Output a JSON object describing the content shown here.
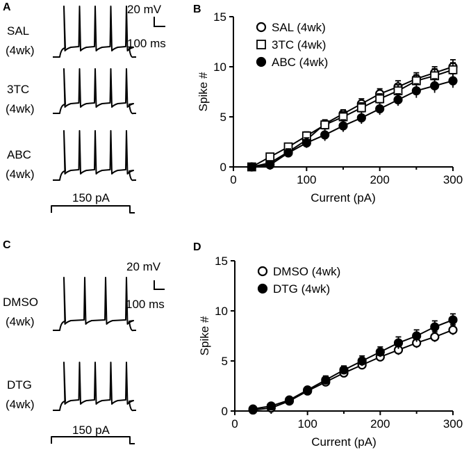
{
  "panels": [
    {
      "letter": "A"
    },
    {
      "letter": "B"
    },
    {
      "letter": "C"
    },
    {
      "letter": "D"
    }
  ],
  "trace_panels": [
    {
      "id": "A",
      "scale_bar": {
        "voltage": "20 mV",
        "time": "100 ms"
      },
      "traces": [
        {
          "group": "SAL",
          "duration": "(4wk)",
          "spikes": 5
        },
        {
          "group": "3TC",
          "duration": "(4wk)",
          "spikes": 5
        },
        {
          "group": "ABC",
          "duration": "(4wk)",
          "spikes": 5
        }
      ],
      "stimulus": "150 pA"
    },
    {
      "id": "C",
      "scale_bar": {
        "voltage": "20 mV",
        "time": "100 ms"
      },
      "traces": [
        {
          "group": "DMSO",
          "duration": "(4wk)",
          "spikes": 4
        },
        {
          "group": "DTG",
          "duration": "(4wk)",
          "spikes": 5
        }
      ],
      "stimulus": "150 pA"
    }
  ],
  "chart_data": [
    {
      "id": "B",
      "type": "line",
      "xlabel": "Current (pA)",
      "ylabel": "Spike #",
      "xlim": [
        0,
        300
      ],
      "ylim": [
        0,
        15
      ],
      "xticks": [
        0,
        100,
        200,
        300
      ],
      "yticks": [
        0,
        5,
        10,
        15
      ],
      "legend_position": "top-left",
      "x": [
        25,
        50,
        75,
        100,
        125,
        150,
        175,
        200,
        225,
        250,
        275,
        300
      ],
      "series": [
        {
          "name": "SAL (4wk)",
          "marker": "circle-open",
          "values": [
            0,
            0.4,
            1.5,
            2.7,
            4.3,
            5.3,
            6.3,
            7.3,
            8.0,
            8.8,
            9.4,
            10.0
          ],
          "errors": [
            0.1,
            0.1,
            0.3,
            0.4,
            0.4,
            0.4,
            0.5,
            0.5,
            0.6,
            0.6,
            0.6,
            0.7
          ]
        },
        {
          "name": "3TC (4wk)",
          "marker": "square-open",
          "values": [
            0,
            1.0,
            2.0,
            3.1,
            4.2,
            5.0,
            5.9,
            6.8,
            7.6,
            8.6,
            9.1,
            9.7
          ],
          "errors": [
            0.1,
            0.2,
            0.3,
            0.4,
            0.4,
            0.5,
            0.5,
            0.5,
            0.6,
            0.6,
            0.7,
            0.7
          ]
        },
        {
          "name": "ABC (4wk)",
          "marker": "circle-filled",
          "values": [
            0,
            0.2,
            1.4,
            2.4,
            3.2,
            4.1,
            4.9,
            5.8,
            6.7,
            7.6,
            8.1,
            8.6
          ],
          "errors": [
            0.1,
            0.2,
            0.4,
            0.5,
            0.6,
            0.6,
            0.6,
            0.6,
            0.6,
            0.7,
            0.7,
            0.7
          ]
        }
      ]
    },
    {
      "id": "D",
      "type": "line",
      "xlabel": "Current (pA)",
      "ylabel": "Spike #",
      "xlim": [
        0,
        300
      ],
      "ylim": [
        0,
        15
      ],
      "xticks": [
        0,
        100,
        200,
        300
      ],
      "yticks": [
        0,
        5,
        10,
        15
      ],
      "legend_position": "top-left",
      "x": [
        25,
        50,
        75,
        100,
        125,
        150,
        175,
        200,
        225,
        250,
        275,
        300
      ],
      "series": [
        {
          "name": "DMSO (4wk)",
          "marker": "circle-open",
          "values": [
            0.1,
            0.3,
            1.0,
            2.0,
            2.9,
            3.8,
            4.6,
            5.4,
            6.1,
            6.8,
            7.4,
            8.1
          ],
          "errors": [
            0.1,
            0.1,
            0.2,
            0.3,
            0.4,
            0.4,
            0.4,
            0.4,
            0.5,
            0.5,
            0.5,
            0.5
          ]
        },
        {
          "name": "DTG (4wk)",
          "marker": "circle-filled",
          "values": [
            0.2,
            0.5,
            1.1,
            2.1,
            3.1,
            4.1,
            5.0,
            5.9,
            6.8,
            7.5,
            8.4,
            9.1
          ],
          "errors": [
            0.2,
            0.2,
            0.2,
            0.3,
            0.4,
            0.4,
            0.5,
            0.5,
            0.6,
            0.6,
            0.6,
            0.6
          ]
        }
      ]
    }
  ]
}
